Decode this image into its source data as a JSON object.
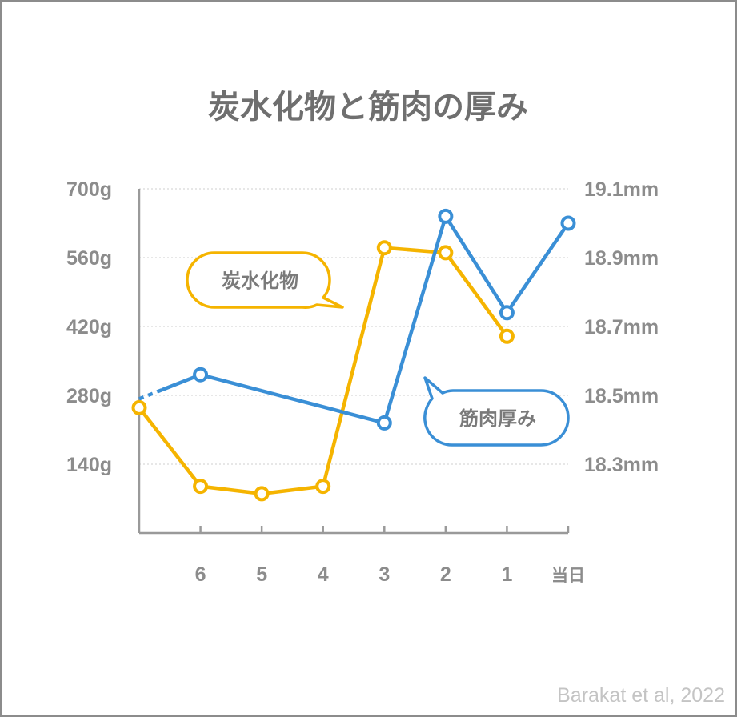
{
  "credit": "Barakat et al, 2022",
  "colors": {
    "carbs": "#f5b400",
    "muscle": "#3a8fd6",
    "text": "#8c8c8c",
    "title": "#6f6f6f"
  },
  "chart_data": {
    "type": "line",
    "title": "炭水化物と筋肉の厚み",
    "categories": [
      "",
      "6",
      "5",
      "4",
      "3",
      "2",
      "1",
      "当日"
    ],
    "y_left": {
      "ticks": [
        "700g",
        "560g",
        "420g",
        "280g",
        "140g"
      ],
      "tick_values": [
        700,
        560,
        420,
        280,
        140
      ],
      "range": [
        0,
        700
      ]
    },
    "y_right": {
      "ticks": [
        "19.1mm",
        "18.9mm",
        "18.7mm",
        "18.5mm",
        "18.3mm"
      ],
      "tick_values": [
        19.1,
        18.9,
        18.7,
        18.5,
        18.3
      ],
      "range": [
        18.1,
        19.1
      ]
    },
    "grid": "horizontal dotted",
    "series": [
      {
        "name": "炭水化物",
        "axis": "left",
        "color": "#f5b400",
        "values": [
          255,
          95,
          80,
          95,
          580,
          570,
          400,
          null
        ],
        "first_marker": "open"
      },
      {
        "name": "筋肉厚み",
        "axis": "right",
        "color": "#3a8fd6",
        "values": [
          18.49,
          18.56,
          null,
          null,
          18.42,
          19.02,
          18.74,
          19.0
        ],
        "first_segment": "dashed"
      }
    ],
    "annotations": [
      {
        "text": "炭水化物",
        "series": "炭水化物"
      },
      {
        "text": "筋肉厚み",
        "series": "筋肉厚み"
      }
    ]
  }
}
